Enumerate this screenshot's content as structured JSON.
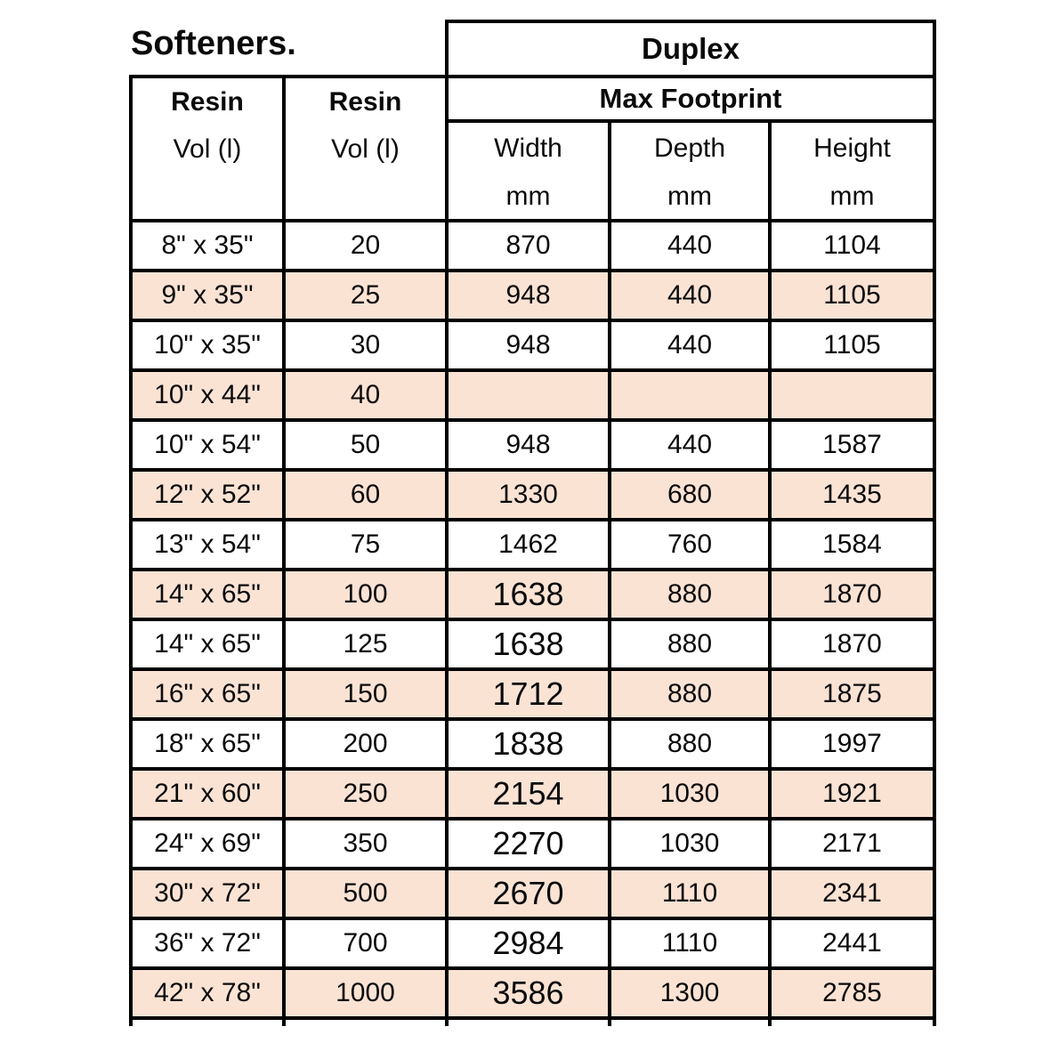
{
  "title": "Softeners.",
  "table": {
    "group_header": "Duplex",
    "subgroup_header": "Max Footprint",
    "resin_headers": [
      {
        "title": "Resin",
        "subtitle": "Vol (l)"
      },
      {
        "title": "Resin",
        "subtitle": "Vol (l)"
      }
    ],
    "dim_headers": [
      {
        "label": "Width",
        "unit": "mm"
      },
      {
        "label": "Depth",
        "unit": "mm"
      },
      {
        "label": "Height",
        "unit": "mm"
      }
    ],
    "rows": [
      {
        "size": "8\" x 35\"",
        "vol": "20",
        "width": "870",
        "depth": "440",
        "height": "1104",
        "shaded": false,
        "large_width": false
      },
      {
        "size": "9\" x 35\"",
        "vol": "25",
        "width": "948",
        "depth": "440",
        "height": "1105",
        "shaded": true,
        "large_width": false
      },
      {
        "size": "10\" x 35\"",
        "vol": "30",
        "width": "948",
        "depth": "440",
        "height": "1105",
        "shaded": false,
        "large_width": false
      },
      {
        "size": "10\" x 44\"",
        "vol": "40",
        "width": "",
        "depth": "",
        "height": "",
        "shaded": true,
        "large_width": false
      },
      {
        "size": "10\" x 54\"",
        "vol": "50",
        "width": "948",
        "depth": "440",
        "height": "1587",
        "shaded": false,
        "large_width": false
      },
      {
        "size": "12\" x 52\"",
        "vol": "60",
        "width": "1330",
        "depth": "680",
        "height": "1435",
        "shaded": true,
        "large_width": false
      },
      {
        "size": "13\" x 54\"",
        "vol": "75",
        "width": "1462",
        "depth": "760",
        "height": "1584",
        "shaded": false,
        "large_width": false
      },
      {
        "size": "14\" x 65\"",
        "vol": "100",
        "width": "1638",
        "depth": "880",
        "height": "1870",
        "shaded": true,
        "large_width": true
      },
      {
        "size": "14\" x 65\"",
        "vol": "125",
        "width": "1638",
        "depth": "880",
        "height": "1870",
        "shaded": false,
        "large_width": true
      },
      {
        "size": "16\" x 65\"",
        "vol": "150",
        "width": "1712",
        "depth": "880",
        "height": "1875",
        "shaded": true,
        "large_width": true
      },
      {
        "size": "18\" x 65\"",
        "vol": "200",
        "width": "1838",
        "depth": "880",
        "height": "1997",
        "shaded": false,
        "large_width": true
      },
      {
        "size": "21\" x 60\"",
        "vol": "250",
        "width": "2154",
        "depth": "1030",
        "height": "1921",
        "shaded": true,
        "large_width": true
      },
      {
        "size": "24\" x 69\"",
        "vol": "350",
        "width": "2270",
        "depth": "1030",
        "height": "2171",
        "shaded": false,
        "large_width": true
      },
      {
        "size": "30\" x 72\"",
        "vol": "500",
        "width": "2670",
        "depth": "1110",
        "height": "2341",
        "shaded": true,
        "large_width": true
      },
      {
        "size": "36\" x 72\"",
        "vol": "700",
        "width": "2984",
        "depth": "1110",
        "height": "2441",
        "shaded": false,
        "large_width": true
      },
      {
        "size": "42\" x 78\"",
        "vol": "1000",
        "width": "3586",
        "depth": "1300",
        "height": "2785",
        "shaded": true,
        "large_width": true
      }
    ]
  },
  "colors": {
    "stripe": "#FBE3D4",
    "border": "#000000",
    "text": "#0A0A0A",
    "background": "#FFFFFF"
  }
}
